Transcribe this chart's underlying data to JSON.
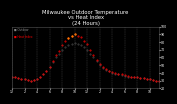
{
  "title": "Milwaukee Outdoor Temperature\nvs Heat Index\n(24 Hours)",
  "title_fontsize": 3.8,
  "background_color": "#000000",
  "plot_bg_color": "#000000",
  "grid_color": "#555555",
  "temp_color": "#000000",
  "heat_color": "#ff0000",
  "orange_color": "#ff8800",
  "tick_color": "#ffffff",
  "title_color": "#ffffff",
  "ylim": [
    20,
    100
  ],
  "xlim": [
    0,
    47
  ],
  "ytick_labels": [
    "20",
    "30",
    "40",
    "50",
    "60",
    "70",
    "80",
    "90",
    "100"
  ],
  "ytick_values": [
    20,
    30,
    40,
    50,
    60,
    70,
    80,
    90,
    100
  ],
  "xtick_positions": [
    0,
    4,
    8,
    12,
    16,
    20,
    24,
    28,
    32,
    36,
    40,
    44
  ],
  "xtick_labels": [
    "12",
    "2",
    "4",
    "6",
    "8",
    "10",
    "12",
    "2",
    "4",
    "6",
    "8",
    "10"
  ],
  "temp_data": [
    35,
    34,
    33,
    32,
    32,
    31,
    30,
    31,
    32,
    35,
    38,
    42,
    48,
    54,
    60,
    65,
    70,
    73,
    76,
    78,
    79,
    78,
    76,
    73,
    70,
    65,
    60,
    55,
    50,
    46,
    44,
    42,
    40,
    39,
    38,
    37,
    36,
    35,
    35,
    34,
    34,
    33,
    33,
    32,
    32,
    31,
    30,
    29
  ],
  "heat_data": [
    35,
    34,
    33,
    32,
    32,
    31,
    30,
    31,
    32,
    35,
    38,
    42,
    48,
    55,
    63,
    69,
    76,
    81,
    85,
    88,
    90,
    88,
    86,
    82,
    77,
    70,
    63,
    57,
    51,
    47,
    45,
    43,
    41,
    40,
    39,
    38,
    37,
    36,
    35,
    34,
    34,
    33,
    33,
    32,
    32,
    31,
    30,
    29
  ],
  "legend_labels": [
    "Outdoor",
    "Heat Index"
  ],
  "legend_colors": [
    "#000000",
    "#ff0000"
  ]
}
